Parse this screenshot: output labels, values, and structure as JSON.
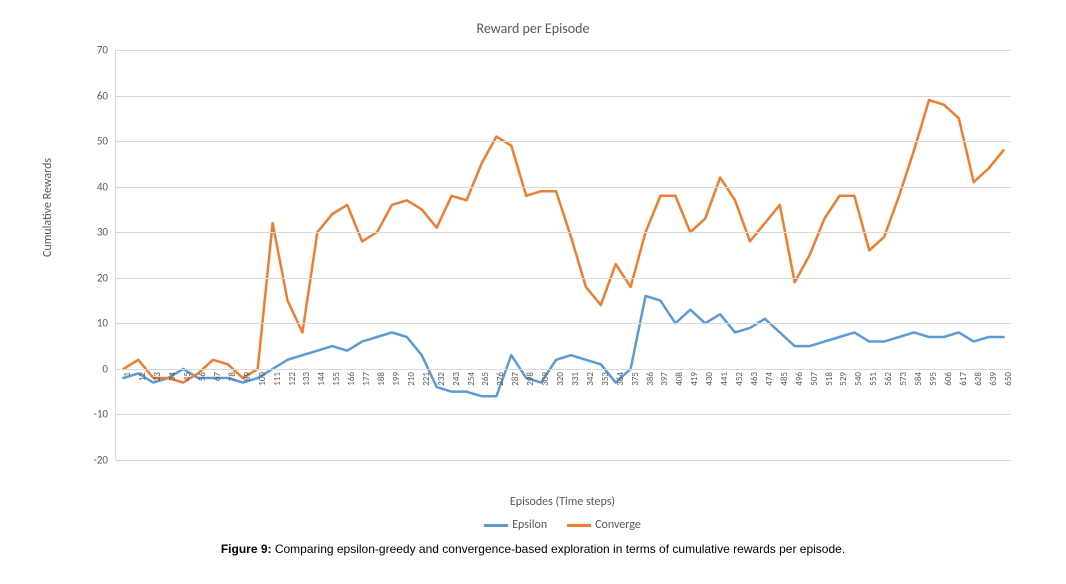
{
  "chart": {
    "type": "line",
    "title": "Reward per Episode",
    "title_fontsize": 14,
    "title_color": "#595959",
    "x_axis_title": "Episodes (Time steps)",
    "y_axis_title": "Cumulative Rewards",
    "axis_title_fontsize": 12,
    "axis_label_fontsize": 11,
    "x_tick_fontsize": 9,
    "background_color": "#ffffff",
    "grid_color": "#d9d9d9",
    "axis_color": "#d9d9d9",
    "label_color": "#595959",
    "ylim": [
      -20,
      70
    ],
    "ytick_step": 10,
    "yticks": [
      -20,
      -10,
      0,
      10,
      20,
      30,
      40,
      50,
      60,
      70
    ],
    "x_start": 1,
    "x_step": 11,
    "x_count": 60,
    "x_labels": [
      1,
      12,
      23,
      34,
      45,
      56,
      67,
      78,
      89,
      100,
      111,
      122,
      133,
      144,
      155,
      166,
      177,
      188,
      199,
      210,
      221,
      232,
      243,
      254,
      265,
      276,
      287,
      298,
      309,
      320,
      331,
      342,
      353,
      364,
      375,
      386,
      397,
      408,
      419,
      430,
      441,
      452,
      463,
      474,
      485,
      496,
      507,
      518,
      529,
      540,
      551,
      562,
      573,
      584,
      595,
      606,
      617,
      628,
      639,
      650
    ],
    "line_width": 2.5,
    "series": [
      {
        "name": "Epsilon",
        "color": "#5b9bd5",
        "values": [
          -2,
          -1,
          -3,
          -2,
          0,
          -2,
          -2,
          -2,
          -3,
          -2,
          0,
          2,
          3,
          4,
          5,
          4,
          6,
          7,
          8,
          7,
          3,
          -4,
          -5,
          -5,
          -6,
          -6,
          3,
          -2,
          -3,
          2,
          3,
          2,
          1,
          -3,
          0,
          16,
          15,
          10,
          13,
          10,
          12,
          8,
          9,
          11,
          8,
          5,
          5,
          6,
          7,
          8,
          6,
          6,
          7,
          8,
          7,
          7,
          8,
          6,
          7,
          7
        ]
      },
      {
        "name": "Converge",
        "color": "#ed7d31",
        "values": [
          0,
          2,
          -2,
          -2,
          -3,
          -1,
          2,
          1,
          -2,
          0,
          32,
          15,
          8,
          30,
          34,
          36,
          28,
          30,
          36,
          37,
          35,
          31,
          38,
          37,
          45,
          51,
          49,
          38,
          39,
          39,
          29,
          18,
          14,
          23,
          18,
          30,
          38,
          38,
          30,
          33,
          42,
          37,
          28,
          32,
          36,
          19,
          25,
          33,
          38,
          38,
          26,
          29,
          38,
          48,
          59,
          58,
          55,
          41,
          44,
          48
        ]
      }
    ],
    "legend_position": "bottom"
  },
  "caption": {
    "label": "Figure 9:",
    "text": "Comparing epsilon-greedy and convergence-based exploration in terms of cumulative rewards per episode."
  }
}
